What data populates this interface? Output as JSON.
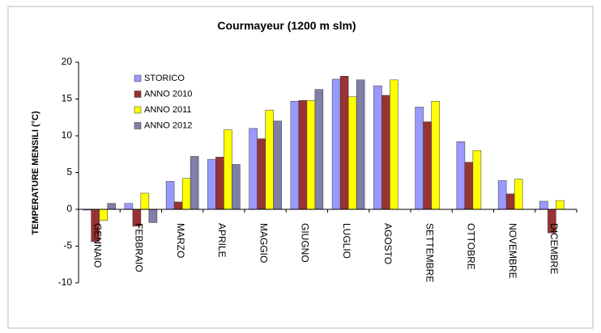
{
  "chart_data": {
    "type": "bar",
    "title": "Courmayeur (1200 m slm)",
    "y_label": "TEMPERATURE MENSILI (°C)",
    "categories": [
      "GENNAIO",
      "FEBBRAIO",
      "MARZO",
      "APRILE",
      "MAGGIO",
      "GIUGNO",
      "LUGLIO",
      "AGOSTO",
      "SETTEMBRE",
      "OTTOBRE",
      "NOVEMBRE",
      "DICEMBRE"
    ],
    "series": [
      {
        "name": "STORICO",
        "color": "#9999ff",
        "values": [
          -0.1,
          0.8,
          3.8,
          6.8,
          11.0,
          14.7,
          17.7,
          16.8,
          13.9,
          9.2,
          3.9,
          1.1
        ]
      },
      {
        "name": "ANNO 2010",
        "color": "#993333",
        "values": [
          -4.4,
          -2.3,
          1.0,
          7.1,
          9.6,
          14.8,
          18.1,
          15.5,
          11.9,
          6.4,
          2.1,
          -3.2
        ]
      },
      {
        "name": "ANNO 2011",
        "color": "#ffff00",
        "values": [
          -1.5,
          2.2,
          4.2,
          10.8,
          13.5,
          14.8,
          15.3,
          17.6,
          14.7,
          8.0,
          4.1,
          1.2
        ]
      },
      {
        "name": "ANNO 2012",
        "color": "#7f7fa8",
        "values": [
          0.8,
          -1.8,
          7.2,
          6.1,
          12.0,
          16.3,
          17.6,
          null,
          null,
          null,
          null,
          null
        ]
      }
    ],
    "ylim": [
      -10,
      20
    ],
    "yticks": [
      -10,
      -5,
      0,
      5,
      10,
      15,
      20
    ],
    "legend": "upper left",
    "grid": false
  }
}
